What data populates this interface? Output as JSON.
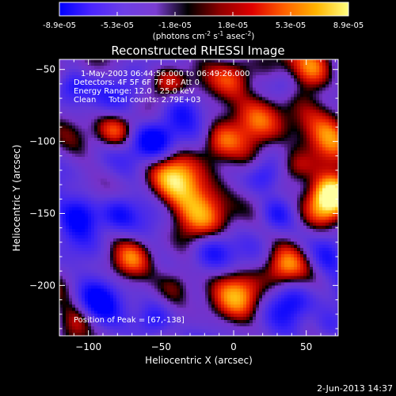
{
  "colorbar": {
    "tick_labels": [
      "-8.9e-05",
      "-5.3e-05",
      "-1.8e-05",
      "1.8e-05",
      "5.3e-05",
      "8.9e-05"
    ],
    "unit_label": {
      "prefix": "(photons cm",
      "exp1": "-2",
      "mid1": " s",
      "exp2": "-1",
      "mid2": " asec",
      "exp3": "-2",
      "suffix": ")"
    },
    "colors": [
      "#0000ff",
      "#4b25ff",
      "#6d3fe6",
      "#7a3dd1",
      "#000000",
      "#8e0000",
      "#e00000",
      "#ff6000",
      "#ffb400",
      "#ffff80"
    ]
  },
  "chart_data": {
    "type": "heatmap",
    "title": "Reconstructed RHESSI Image",
    "xlabel": "Heliocentric X (arcsec)",
    "ylabel": "Heliocentric Y (arcsec)",
    "xlim": [
      -120,
      72
    ],
    "ylim": [
      -235,
      -43
    ],
    "xticks": [
      -100,
      -50,
      0,
      50
    ],
    "yticks": [
      -50,
      -100,
      -150,
      -200
    ],
    "xtick_labels": [
      "−100",
      "−50",
      "0",
      "50"
    ],
    "ytick_labels": [
      "−50",
      "−100",
      "−150",
      "−200"
    ],
    "info_lines": [
      "1-May-2003 06:44:56.000 to 06:49:26.000",
      "Detectors: 4F 5F 6F 7F 8F, Att 0",
      "Energy Range: 12.0 - 25.0 keV",
      "Clean     Total counts: 2.79E+03"
    ],
    "peak_label": "Position of Peak = [67,-138]",
    "peak": [
      67,
      -138
    ],
    "blobs": [
      {
        "x": 55,
        "y": -50,
        "a": 1.0,
        "s": 11
      },
      {
        "x": 18,
        "y": -82,
        "a": 0.95,
        "s": 13
      },
      {
        "x": 68,
        "y": -100,
        "a": 0.9,
        "s": 12
      },
      {
        "x": -82,
        "y": -93,
        "a": 0.85,
        "s": 9
      },
      {
        "x": -20,
        "y": -145,
        "a": 1.0,
        "s": 15
      },
      {
        "x": -40,
        "y": -125,
        "a": 0.8,
        "s": 12
      },
      {
        "x": 60,
        "y": -150,
        "a": 0.85,
        "s": 11
      },
      {
        "x": 67,
        "y": -138,
        "a": 1.0,
        "s": 9
      },
      {
        "x": -45,
        "y": -58,
        "a": 0.7,
        "s": 10
      },
      {
        "x": 5,
        "y": -205,
        "a": 0.8,
        "s": 12
      },
      {
        "x": -40,
        "y": -200,
        "a": 0.65,
        "s": 10
      },
      {
        "x": 35,
        "y": -185,
        "a": 0.75,
        "s": 10
      },
      {
        "x": -70,
        "y": -180,
        "a": 0.55,
        "s": 9
      },
      {
        "x": -108,
        "y": -225,
        "a": 0.6,
        "s": 9
      },
      {
        "x": 0,
        "y": -55,
        "a": 0.55,
        "s": 10
      },
      {
        "x": 42,
        "y": -118,
        "a": 0.7,
        "s": 9
      },
      {
        "x": -10,
        "y": -100,
        "a": 0.55,
        "s": 9
      },
      {
        "x": -105,
        "y": -55,
        "a": 0.5,
        "s": 9
      },
      {
        "x": -110,
        "y": -60,
        "a": -0.7,
        "s": 8
      },
      {
        "x": -75,
        "y": -70,
        "a": -0.6,
        "s": 11
      },
      {
        "x": -55,
        "y": -100,
        "a": -0.95,
        "s": 10
      },
      {
        "x": -105,
        "y": -150,
        "a": -0.85,
        "s": 10
      },
      {
        "x": -80,
        "y": -150,
        "a": -0.6,
        "s": 9
      },
      {
        "x": -95,
        "y": -210,
        "a": -0.7,
        "s": 11
      },
      {
        "x": -55,
        "y": -225,
        "a": -0.8,
        "s": 9
      },
      {
        "x": -15,
        "y": -175,
        "a": -0.75,
        "s": 10
      },
      {
        "x": 30,
        "y": -150,
        "a": -0.8,
        "s": 9
      },
      {
        "x": 40,
        "y": -210,
        "a": -0.65,
        "s": 10
      },
      {
        "x": 65,
        "y": -180,
        "a": -0.5,
        "s": 9
      },
      {
        "x": 65,
        "y": -230,
        "a": -0.5,
        "s": 8
      },
      {
        "x": 20,
        "y": -125,
        "a": -0.5,
        "s": 8
      },
      {
        "x": -35,
        "y": -75,
        "a": -0.45,
        "s": 9
      },
      {
        "x": 35,
        "y": -60,
        "a": -0.4,
        "s": 8
      }
    ]
  },
  "timestamp": "2-Jun-2013 14:37"
}
